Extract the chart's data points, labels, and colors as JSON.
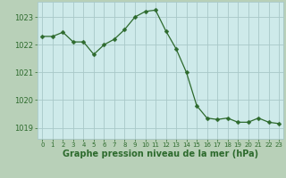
{
  "x": [
    0,
    1,
    2,
    3,
    4,
    5,
    6,
    7,
    8,
    9,
    10,
    11,
    12,
    13,
    14,
    15,
    16,
    17,
    18,
    19,
    20,
    21,
    22,
    23
  ],
  "y": [
    1022.3,
    1022.3,
    1022.45,
    1022.1,
    1022.1,
    1021.65,
    1022.0,
    1022.2,
    1022.55,
    1023.0,
    1023.2,
    1023.25,
    1022.5,
    1021.85,
    1021.0,
    1019.8,
    1019.35,
    1019.3,
    1019.35,
    1019.2,
    1019.2,
    1019.35,
    1019.2,
    1019.15
  ],
  "line_color": "#2d6a2d",
  "marker": "D",
  "marker_size": 2.5,
  "bg_color": "#ceeaea",
  "grid_color": "#a8c8c8",
  "xlabel": "Graphe pression niveau de la mer (hPa)",
  "xlabel_fontsize": 7,
  "ylabel_ticks": [
    1019,
    1020,
    1021,
    1022,
    1023
  ],
  "xtick_labels": [
    "0",
    "1",
    "2",
    "3",
    "4",
    "5",
    "6",
    "7",
    "8",
    "9",
    "10",
    "11",
    "12",
    "13",
    "14",
    "15",
    "16",
    "17",
    "18",
    "19",
    "20",
    "21",
    "22",
    "23"
  ],
  "xlim": [
    -0.5,
    23.4
  ],
  "ylim": [
    1018.6,
    1023.55
  ],
  "tick_color": "#2d6a2d",
  "label_color": "#2d6a2d",
  "outer_bg": "#b8d0b8"
}
